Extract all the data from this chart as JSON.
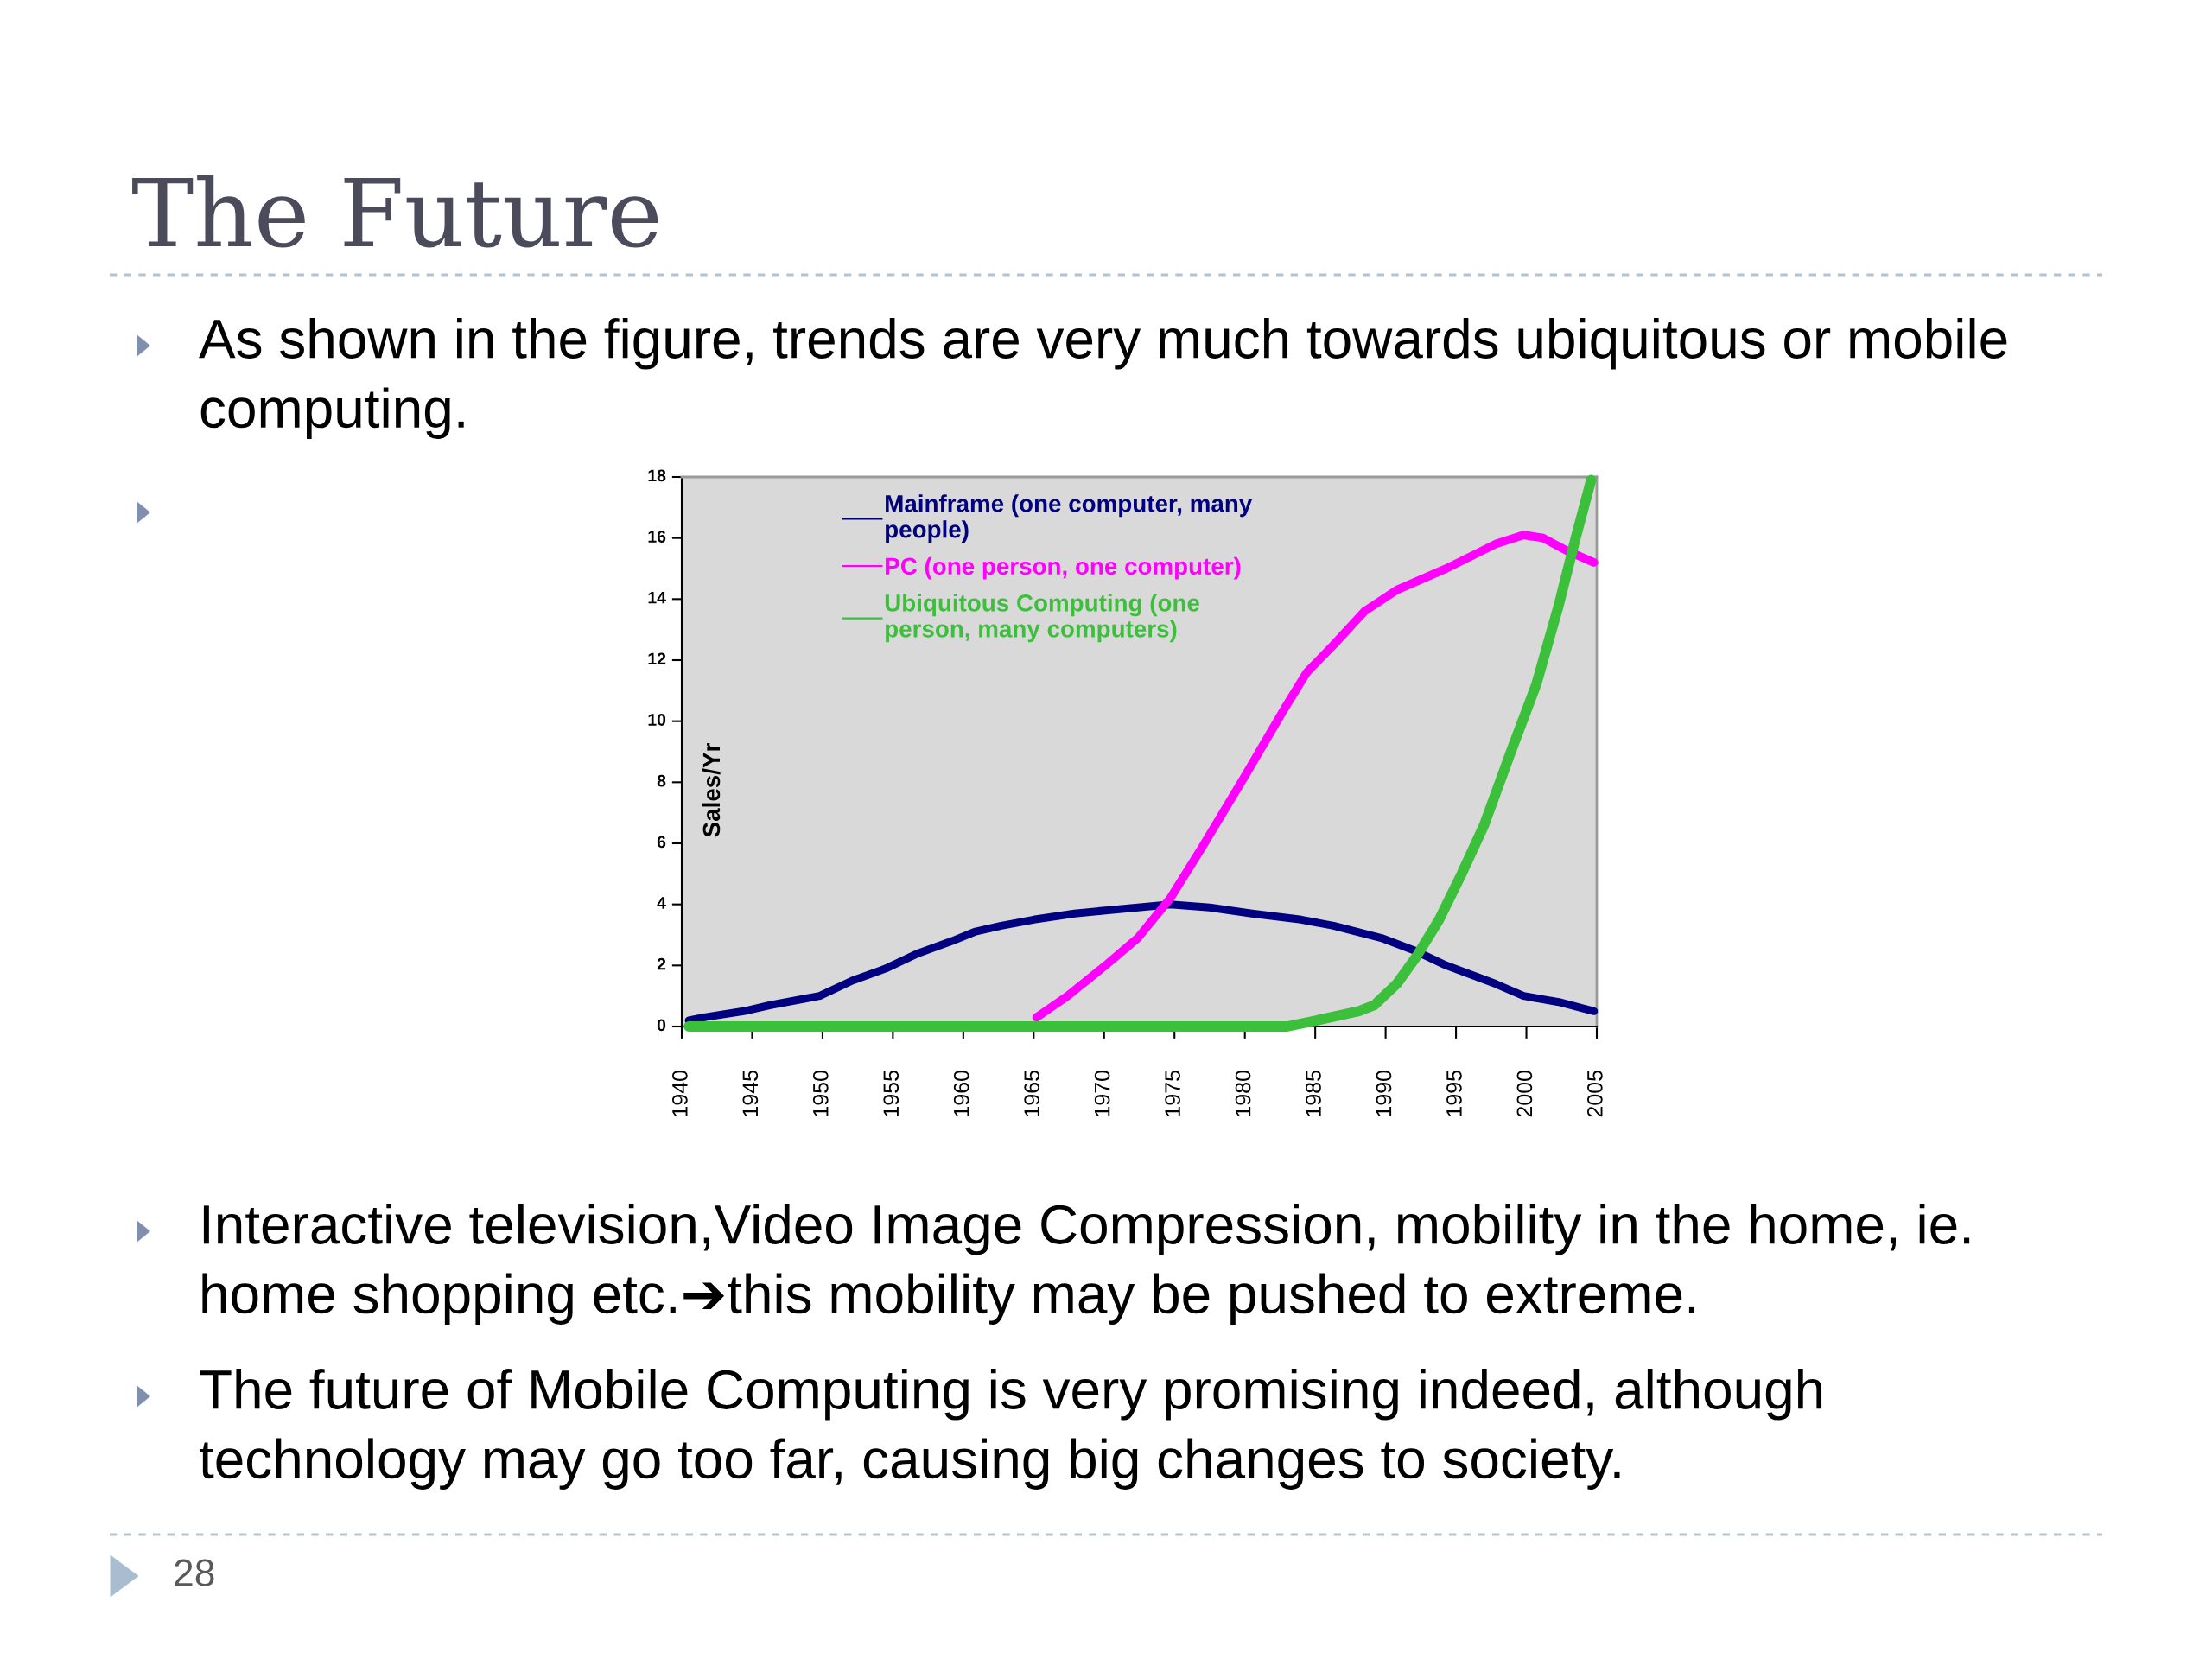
{
  "chart_data": {
    "type": "line",
    "title": "The Future",
    "ylabel": "Sales/Yr",
    "annotations": [
      "As shown in the figure, trends are very much towards ubiquitous or mobile\ncomputing.",
      "Interactive television,Video Image Compression, mobility in the home, ie.\nhome shopping etc.➔this mobility may be pushed to extreme.",
      "The future of Mobile Computing is very promising indeed, although\ntechnology may go too far, causing big changes to society.",
      "28"
    ],
    "xlim": [
      1940,
      2005
    ],
    "xticks": [
      1940,
      1945,
      1950,
      1955,
      1960,
      1965,
      1970,
      1975,
      1980,
      1985,
      1990,
      1995,
      2000,
      2005
    ],
    "ylim": [
      0,
      18
    ],
    "yticks": [
      0,
      2,
      4,
      6,
      8,
      10,
      12,
      14,
      16,
      18
    ],
    "legend": "top",
    "series": [
      {
        "name": "Mainframe (one computer, many\npeople)",
        "color": "#000080",
        "x": [
          1940.5,
          1941.6,
          1944.4,
          1946.3,
          1948.6,
          1949.8,
          1952.1,
          1954.5,
          1956.8,
          1959.2,
          1960.8,
          1962.7,
          1965.0,
          1967.9,
          1970.1,
          1972.4,
          1974.7,
          1977.5,
          1980.5,
          1984.0,
          1986.3,
          1989.7,
          1992.0,
          1994.3,
          1997.8,
          1999.8,
          2002.3,
          2004.8
        ],
        "values": [
          0.2,
          0.3,
          0.5,
          0.7,
          0.9,
          1.0,
          1.5,
          1.9,
          2.4,
          2.8,
          3.1,
          3.3,
          3.5,
          3.7,
          3.8,
          3.9,
          4.0,
          3.9,
          3.7,
          3.5,
          3.3,
          2.9,
          2.5,
          2.0,
          1.4,
          1.0,
          0.8,
          0.5
        ]
      },
      {
        "name": "PC (one person, one computer)",
        "color": "#ff00ff",
        "x": [
          1965.2,
          1967.4,
          1970.1,
          1972.4,
          1974.7,
          1977.0,
          1980.0,
          1982.8,
          1984.4,
          1986.3,
          1988.5,
          1990.8,
          1994.3,
          1997.8,
          1999.8,
          2001.2,
          2002.8,
          2004.8
        ],
        "values": [
          0.3,
          1.0,
          2.0,
          2.9,
          4.2,
          5.9,
          8.2,
          10.4,
          11.6,
          12.5,
          13.6,
          14.3,
          15.0,
          15.8,
          16.1,
          16.0,
          15.6,
          15.2
        ]
      },
      {
        "name": "Ubiquitous Computing (one\nperson, many computers)",
        "color": "#3cc03c",
        "x": [
          1940.5,
          1983.0,
          1985.1,
          1988.1,
          1989.2,
          1990.8,
          1992.2,
          1993.8,
          1995.4,
          1997.0,
          1998.9,
          2000.7,
          2002.3,
          2003.5,
          2004.6
        ],
        "values": [
          0,
          0,
          0.2,
          0.5,
          0.7,
          1.4,
          2.3,
          3.5,
          5.0,
          6.6,
          9.0,
          11.2,
          13.8,
          16.0,
          17.9
        ]
      }
    ]
  }
}
